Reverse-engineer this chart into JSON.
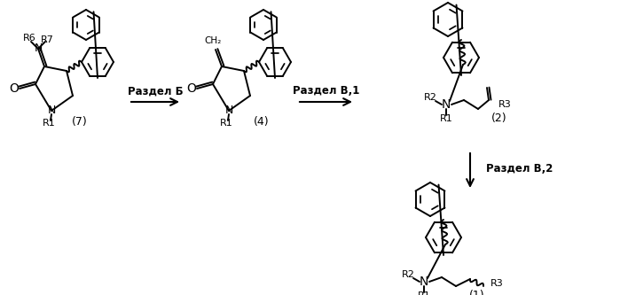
{
  "background_color": "#ffffff",
  "figsize": [
    6.99,
    3.33
  ],
  "dpi": 100,
  "arrow1_text": "Раздел Б",
  "arrow2_text": "Раздел В,1",
  "arrow3_text": "Раздел В,2",
  "label7": "(7)",
  "label4": "(4)",
  "label2": "(2)",
  "label1": "(1)"
}
